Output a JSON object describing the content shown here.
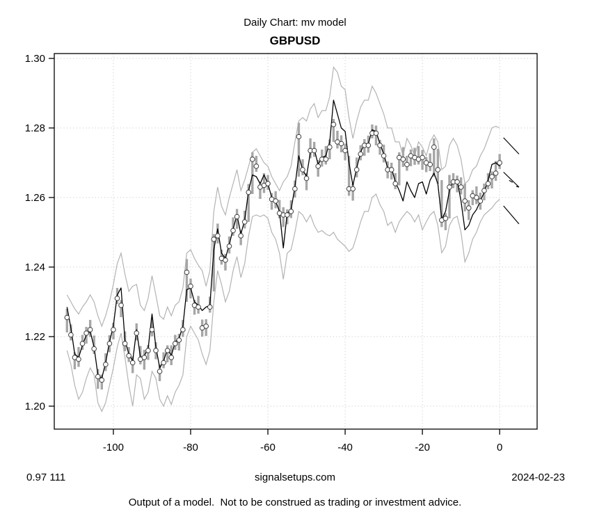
{
  "header": {
    "title": "Daily Chart: mv model",
    "symbol": "GBPUSD"
  },
  "footer": {
    "left_value": "0.97 111",
    "center_site": "signalsetups.com",
    "right_date": "2024-02-23",
    "disclaimer": "Output of a model.  Not to be construed as trading or investment advice."
  },
  "chart_data": {
    "type": "line",
    "title": "GBPUSD",
    "xlabel": "",
    "ylabel": "",
    "x_start": -112,
    "x_ticks": [
      -100,
      -80,
      -60,
      -40,
      -20,
      0
    ],
    "y_ticks": [
      1.2,
      1.22,
      1.24,
      1.26,
      1.28,
      1.3
    ],
    "xlim": [
      -115.3,
      9.7
    ],
    "ylim": [
      1.1934,
      1.3014
    ],
    "grid": true,
    "legend": "none",
    "colors": {
      "bars": "#a6a6a6",
      "bands": "#b3b3b3",
      "model": "#000000",
      "grid": "#d4d4d4",
      "marker_edge": "#3c3c3c",
      "axis": "#000000"
    },
    "series": [
      {
        "name": "close",
        "type": "scatter",
        "marker": "open-circle",
        "values": [
          1.2255,
          1.2205,
          1.214,
          1.2135,
          1.218,
          1.221,
          1.222,
          1.2165,
          1.2085,
          1.2075,
          1.212,
          1.218,
          1.222,
          1.231,
          1.229,
          1.218,
          1.2145,
          1.2125,
          1.221,
          1.2135,
          1.214,
          1.216,
          1.222,
          1.216,
          1.21,
          1.2125,
          1.216,
          1.214,
          1.218,
          1.219,
          1.222,
          1.2385,
          1.2345,
          1.229,
          1.2285,
          1.2225,
          1.223,
          1.2285,
          1.248,
          1.249,
          1.2425,
          1.242,
          1.246,
          1.2505,
          1.2545,
          1.249,
          1.253,
          1.2615,
          1.271,
          1.269,
          1.263,
          1.2635,
          1.264,
          1.2595,
          1.259,
          1.2555,
          1.255,
          1.255,
          1.256,
          1.2625,
          1.2775,
          1.268,
          1.2655,
          1.2735,
          1.2735,
          1.269,
          1.271,
          1.271,
          1.2745,
          1.281,
          1.276,
          1.2755,
          1.2735,
          1.2625,
          1.2625,
          1.268,
          1.2725,
          1.275,
          1.275,
          1.2785,
          1.2785,
          1.275,
          1.272,
          1.268,
          1.268,
          1.264,
          1.2715,
          1.271,
          1.2695,
          1.272,
          1.2715,
          1.271,
          1.2715,
          1.27,
          1.2695,
          1.2745,
          1.268,
          1.2535,
          1.254,
          1.263,
          1.2645,
          1.2645,
          1.263,
          1.259,
          1.257,
          1.2605,
          1.26,
          1.259,
          1.262,
          1.264,
          1.266,
          1.267,
          1.27
        ]
      },
      {
        "name": "daily-high",
        "type": "hl-bar-top",
        "values": [
          1.228,
          1.2235,
          1.2155,
          1.217,
          1.2205,
          1.2228,
          1.2248,
          1.2203,
          1.2107,
          1.2091,
          1.2152,
          1.2204,
          1.224,
          1.234,
          1.2305,
          1.2215,
          1.217,
          1.2143,
          1.2238,
          1.2173,
          1.2162,
          1.2176,
          1.2252,
          1.2184,
          1.212,
          1.2155,
          1.2175,
          1.2175,
          1.2205,
          1.2208,
          1.2248,
          1.2423,
          1.2367,
          1.2306,
          1.2317,
          1.2249,
          1.225,
          1.2315,
          1.2495,
          1.2525,
          1.245,
          1.2438,
          1.2488,
          1.2543,
          1.2567,
          1.2506,
          1.2562,
          1.2639,
          1.273,
          1.272,
          1.2645,
          1.267,
          1.2665,
          1.2613,
          1.2618,
          1.2593,
          1.2572,
          1.2566,
          1.2592,
          1.2649,
          1.2815,
          1.271,
          1.267,
          1.277,
          1.276,
          1.2708,
          1.2738,
          1.2748,
          1.2767,
          1.2826,
          1.2792,
          1.2779,
          1.2755,
          1.272,
          1.264,
          1.2715,
          1.275,
          1.2768,
          1.2778,
          1.281,
          1.2807,
          1.2766,
          1.2752,
          1.2704,
          1.27,
          1.267,
          1.273,
          1.2745,
          1.272,
          1.2738,
          1.2743,
          1.2748,
          1.2737,
          1.2716,
          1.2727,
          1.277,
          1.274,
          1.265,
          1.2555,
          1.2665,
          1.267,
          1.2663,
          1.2658,
          1.264,
          1.2592,
          1.2621,
          1.2632,
          1.2614,
          1.264,
          1.267,
          1.2675,
          1.2705,
          1.2725
        ]
      },
      {
        "name": "daily-low",
        "type": "hl-bar-bottom",
        "values": [
          1.2212,
          1.2189,
          1.2106,
          1.2113,
          1.2162,
          1.218,
          1.2199,
          1.215,
          1.205,
          1.2048,
          1.2101,
          1.2155,
          1.2192,
          1.2294,
          1.2256,
          1.2158,
          1.2127,
          1.2095,
          1.2189,
          1.212,
          1.2105,
          1.2133,
          1.2201,
          1.2135,
          1.2072,
          1.2109,
          1.2126,
          1.2118,
          1.2162,
          1.216,
          1.2199,
          1.23,
          1.231,
          1.2263,
          1.2266,
          1.22,
          1.2202,
          1.2269,
          1.233,
          1.2468,
          1.2407,
          1.239,
          1.2439,
          1.249,
          1.251,
          1.2463,
          1.2511,
          1.253,
          1.261,
          1.2674,
          1.2596,
          1.2613,
          1.2622,
          1.2565,
          1.2569,
          1.254,
          1.2515,
          1.2523,
          1.2541,
          1.26,
          1.266,
          1.2664,
          1.2621,
          1.2713,
          1.2717,
          1.266,
          1.2689,
          1.2695,
          1.271,
          1.276,
          1.2741,
          1.273,
          1.2707,
          1.2605,
          1.2591,
          1.2658,
          1.2707,
          1.272,
          1.2729,
          1.277,
          1.275,
          1.2723,
          1.2701,
          1.2655,
          1.2652,
          1.2624,
          1.2635,
          1.2688,
          1.2677,
          1.269,
          1.2694,
          1.2695,
          1.268,
          1.2673,
          1.2676,
          1.266,
          1.264,
          1.2515,
          1.2506,
          1.254,
          1.2627,
          1.2615,
          1.2609,
          1.256,
          1.2535,
          1.2578,
          1.2581,
          1.2565,
          1.2592,
          1.2624,
          1.2626,
          1.2648,
          1.2682
        ]
      },
      {
        "name": "model-fit",
        "type": "line",
        "values": [
          1.2285,
          1.2225,
          1.215,
          1.214,
          1.2175,
          1.2205,
          1.2215,
          1.217,
          1.209,
          1.208,
          1.2125,
          1.2185,
          1.223,
          1.232,
          1.234,
          1.219,
          1.215,
          1.213,
          1.222,
          1.214,
          1.2145,
          1.2165,
          1.2265,
          1.217,
          1.211,
          1.213,
          1.2165,
          1.2145,
          1.2185,
          1.2195,
          1.223,
          1.2335,
          1.234,
          1.23,
          1.229,
          1.2275,
          1.2285,
          1.229,
          1.245,
          1.251,
          1.244,
          1.2425,
          1.2465,
          1.251,
          1.255,
          1.2495,
          1.2535,
          1.262,
          1.2665,
          1.266,
          1.264,
          1.2665,
          1.264,
          1.26,
          1.259,
          1.256,
          1.2455,
          1.2555,
          1.2565,
          1.263,
          1.272,
          1.268,
          1.266,
          1.273,
          1.274,
          1.2695,
          1.2715,
          1.272,
          1.276,
          1.288,
          1.284,
          1.28,
          1.279,
          1.27,
          1.2635,
          1.2685,
          1.273,
          1.2755,
          1.2755,
          1.2795,
          1.279,
          1.2755,
          1.2725,
          1.2685,
          1.2685,
          1.2645,
          1.262,
          1.259,
          1.2645,
          1.262,
          1.26,
          1.264,
          1.2645,
          1.261,
          1.265,
          1.267,
          1.264,
          1.2537,
          1.256,
          1.262,
          1.265,
          1.265,
          1.259,
          1.2507,
          1.252,
          1.255,
          1.2565,
          1.259,
          1.2615,
          1.265,
          1.2695,
          1.27,
          1.269
        ]
      },
      {
        "name": "upper-band",
        "type": "line",
        "values": [
          1.232,
          1.23,
          1.228,
          1.2265,
          1.2285,
          1.23,
          1.232,
          1.23,
          1.226,
          1.223,
          1.226,
          1.23,
          1.235,
          1.241,
          1.244,
          1.238,
          1.233,
          1.2345,
          1.235,
          1.229,
          1.2275,
          1.231,
          1.2375,
          1.232,
          1.226,
          1.225,
          1.2285,
          1.226,
          1.229,
          1.23,
          1.234,
          1.244,
          1.245,
          1.2425,
          1.2405,
          1.239,
          1.2345,
          1.239,
          1.256,
          1.263,
          1.2575,
          1.255,
          1.26,
          1.264,
          1.268,
          1.262,
          1.265,
          1.269,
          1.273,
          1.274,
          1.272,
          1.27,
          1.269,
          1.266,
          1.264,
          1.262,
          1.2645,
          1.266,
          1.269,
          1.276,
          1.282,
          1.283,
          1.282,
          1.2855,
          1.287,
          1.283,
          1.285,
          1.285,
          1.289,
          1.2975,
          1.296,
          1.292,
          1.291,
          1.283,
          1.277,
          1.282,
          1.286,
          1.288,
          1.288,
          1.292,
          1.29,
          1.287,
          1.284,
          1.28,
          1.28,
          1.276,
          1.276,
          1.272,
          1.277,
          1.275,
          1.272,
          1.276,
          1.2745,
          1.272,
          1.276,
          1.278,
          1.276,
          1.268,
          1.269,
          1.275,
          1.277,
          1.275,
          1.271,
          1.264,
          1.265,
          1.268,
          1.269,
          1.272,
          1.274,
          1.277,
          1.28,
          1.2805,
          1.28
        ]
      },
      {
        "name": "lower-band",
        "type": "line",
        "values": [
          1.216,
          1.212,
          1.206,
          1.202,
          1.204,
          1.208,
          1.211,
          1.209,
          1.201,
          1.1985,
          1.201,
          1.206,
          1.211,
          1.217,
          1.221,
          1.214,
          1.206,
          1.2,
          1.209,
          1.208,
          1.202,
          1.204,
          1.21,
          1.208,
          1.202,
          1.2,
          1.203,
          1.2005,
          1.204,
          1.206,
          1.209,
          1.22,
          1.223,
          1.221,
          1.219,
          1.215,
          1.212,
          1.216,
          1.23,
          1.239,
          1.235,
          1.23,
          1.233,
          1.239,
          1.243,
          1.237,
          1.241,
          1.249,
          1.2545,
          1.255,
          1.2545,
          1.255,
          1.254,
          1.25,
          1.248,
          1.244,
          1.2365,
          1.244,
          1.245,
          1.25,
          1.256,
          1.255,
          1.253,
          1.255,
          1.252,
          1.25,
          1.2505,
          1.2495,
          1.249,
          1.25,
          1.248,
          1.247,
          1.246,
          1.2445,
          1.2455,
          1.249,
          1.253,
          1.256,
          1.256,
          1.26,
          1.261,
          1.258,
          1.256,
          1.252,
          1.253,
          1.25,
          1.253,
          1.2546,
          1.256,
          1.255,
          1.253,
          1.255,
          1.2507,
          1.253,
          1.255,
          1.256,
          1.252,
          1.2441,
          1.246,
          1.252,
          1.254,
          1.2546,
          1.25,
          1.2415,
          1.244,
          1.248,
          1.25,
          1.253,
          1.255,
          1.256,
          1.257,
          1.2585,
          1.2595
        ]
      }
    ],
    "forecast_segments": [
      {
        "name": "upper-forecast",
        "x": [
          1,
          5
        ],
        "y": [
          1.2772,
          1.2725
        ]
      },
      {
        "name": "central-forecast",
        "x": [
          1,
          5
        ],
        "y": [
          1.2673,
          1.263
        ]
      },
      {
        "name": "lower-forecast",
        "x": [
          1,
          5
        ],
        "y": [
          1.2576,
          1.2524
        ]
      }
    ]
  }
}
